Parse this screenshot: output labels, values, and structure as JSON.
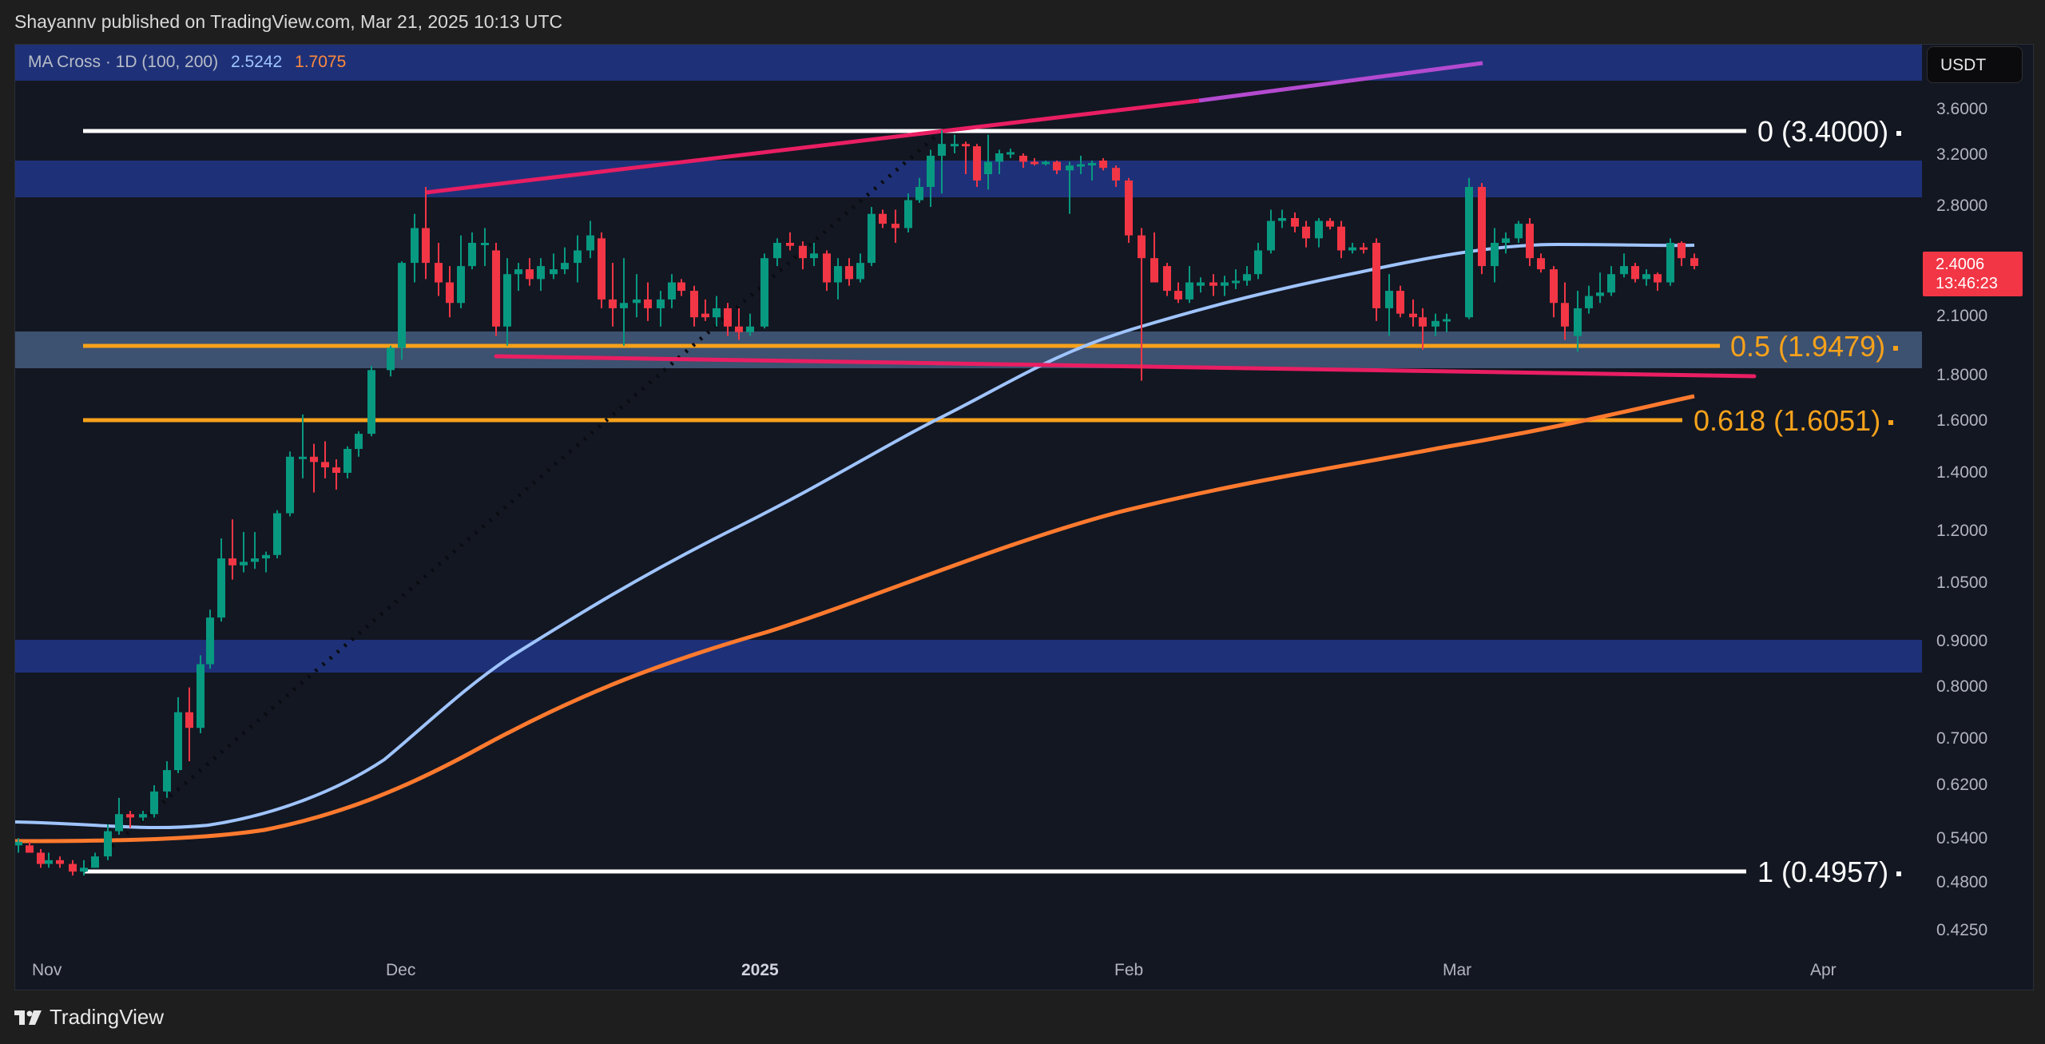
{
  "header": {
    "published_text": "Shayannv published on TradingView.com, Mar 21, 2025 10:13 UTC"
  },
  "indicator": {
    "name": "MA Cross · 1D (100, 200)",
    "ma_fast_value": "2.5242",
    "ma_slow_value": "1.7075",
    "ma_fast_color": "#9fc4ff",
    "ma_slow_color": "#ff7a2e"
  },
  "price_axis": {
    "currency": "USDT",
    "ticks": [
      "3.6000",
      "3.2000",
      "2.8000",
      "2.1000",
      "1.8000",
      "1.6000",
      "1.4000",
      "1.2000",
      "1.0500",
      "0.9000",
      "0.8000",
      "0.7000",
      "0.6200",
      "0.5400",
      "0.4800",
      "0.4250"
    ],
    "current_price": "2.4006",
    "countdown": "13:46:23",
    "current_price_color": "#f23645"
  },
  "time_axis": {
    "ticks": [
      "Nov",
      "Dec",
      "2025",
      "Feb",
      "Mar",
      "Apr"
    ]
  },
  "fib_levels": [
    {
      "label": "0 (3.4000)",
      "color": "#ffffff"
    },
    {
      "label": "0.5 (1.9479)",
      "color": "#f7a21b"
    },
    {
      "label": "0.618 (1.6051)",
      "color": "#f7a21b"
    },
    {
      "label": "1 (0.4957)",
      "color": "#ffffff"
    }
  ],
  "branding": {
    "logo_text": "TradingView"
  },
  "colors": {
    "bull": "#089981",
    "bear": "#f23645",
    "zone_blue": "#1e3178",
    "zone_grey": "#3d5170",
    "trendline": "#e91e63",
    "background": "#131722"
  },
  "chart_data": {
    "type": "candlestick",
    "title": "MA Cross · 1D (100, 200)",
    "symbol_quote": "USDT",
    "xlabel": "",
    "ylabel": "USDT",
    "y_scale": "log",
    "ylim": [
      0.4,
      3.9
    ],
    "x_ticks": [
      "Nov",
      "Dec",
      "2025",
      "Feb",
      "Mar",
      "Apr"
    ],
    "y_ticks": [
      3.6,
      3.2,
      2.8,
      2.1,
      1.8,
      1.6,
      1.4,
      1.2,
      1.05,
      0.9,
      0.8,
      0.7,
      0.62,
      0.54,
      0.48,
      0.425
    ],
    "current_price": 2.4006,
    "series": [
      {
        "name": "MA 100",
        "color": "#9fc4ff",
        "last_value": 2.5242,
        "approx_points": [
          [
            0,
            0.56
          ],
          [
            20,
            0.55
          ],
          [
            40,
            0.6
          ],
          [
            60,
            0.72
          ],
          [
            80,
            0.92
          ],
          [
            100,
            1.17
          ],
          [
            120,
            1.4
          ],
          [
            140,
            1.65
          ],
          [
            160,
            1.95
          ],
          [
            180,
            2.25
          ],
          [
            200,
            2.45
          ],
          [
            214,
            2.52
          ]
        ]
      },
      {
        "name": "MA 200",
        "color": "#ff7a2e",
        "last_value": 1.7075,
        "approx_points": [
          [
            0,
            0.53
          ],
          [
            20,
            0.53
          ],
          [
            40,
            0.56
          ],
          [
            60,
            0.64
          ],
          [
            80,
            0.76
          ],
          [
            100,
            0.87
          ],
          [
            120,
            1.0
          ],
          [
            140,
            1.18
          ],
          [
            160,
            1.36
          ],
          [
            180,
            1.48
          ],
          [
            200,
            1.6
          ],
          [
            214,
            1.71
          ]
        ]
      }
    ],
    "candles_approx": [
      {
        "period": "early Nov",
        "low": 0.49,
        "high": 0.55,
        "trend": "flat"
      },
      {
        "period": "mid-late Nov",
        "low": 0.55,
        "high": 1.65,
        "trend": "strong rally"
      },
      {
        "period": "early Dec",
        "low": 1.85,
        "high": 2.95,
        "trend": "spike then consolidation"
      },
      {
        "period": "Dec-early Jan",
        "low": 1.95,
        "high": 2.75,
        "trend": "range"
      },
      {
        "period": "mid Jan",
        "low": 2.8,
        "high": 3.4,
        "trend": "peak at 3.40"
      },
      {
        "period": "late Jan-Feb",
        "low": 1.78,
        "high": 3.2,
        "trend": "drop with wick to ~1.78"
      },
      {
        "period": "Feb",
        "low": 2.2,
        "high": 2.85,
        "trend": "range"
      },
      {
        "period": "Mar",
        "low": 1.93,
        "high": 3.0,
        "trend": "spike then range"
      },
      {
        "period": "Mar 21",
        "open": 2.45,
        "close": 2.4006,
        "trend": "latest"
      }
    ],
    "annotations": [
      {
        "type": "fib",
        "level": 0,
        "price": 3.4
      },
      {
        "type": "fib",
        "level": 0.5,
        "price": 1.9479
      },
      {
        "type": "fib",
        "level": 0.618,
        "price": 1.6051
      },
      {
        "type": "fib",
        "level": 1,
        "price": 0.4957
      },
      {
        "type": "zone",
        "from": 2.9,
        "to": 3.15
      },
      {
        "type": "zone",
        "from": 1.85,
        "to": 2.02
      },
      {
        "type": "zone",
        "from": 0.83,
        "to": 0.9
      },
      {
        "type": "trendline",
        "label": "upper ascending",
        "from": 2.95,
        "to": 3.75
      },
      {
        "type": "trendline",
        "label": "lower descending",
        "from": 1.9,
        "to": 1.8
      }
    ],
    "grid": false,
    "legend_position": "top-left"
  }
}
